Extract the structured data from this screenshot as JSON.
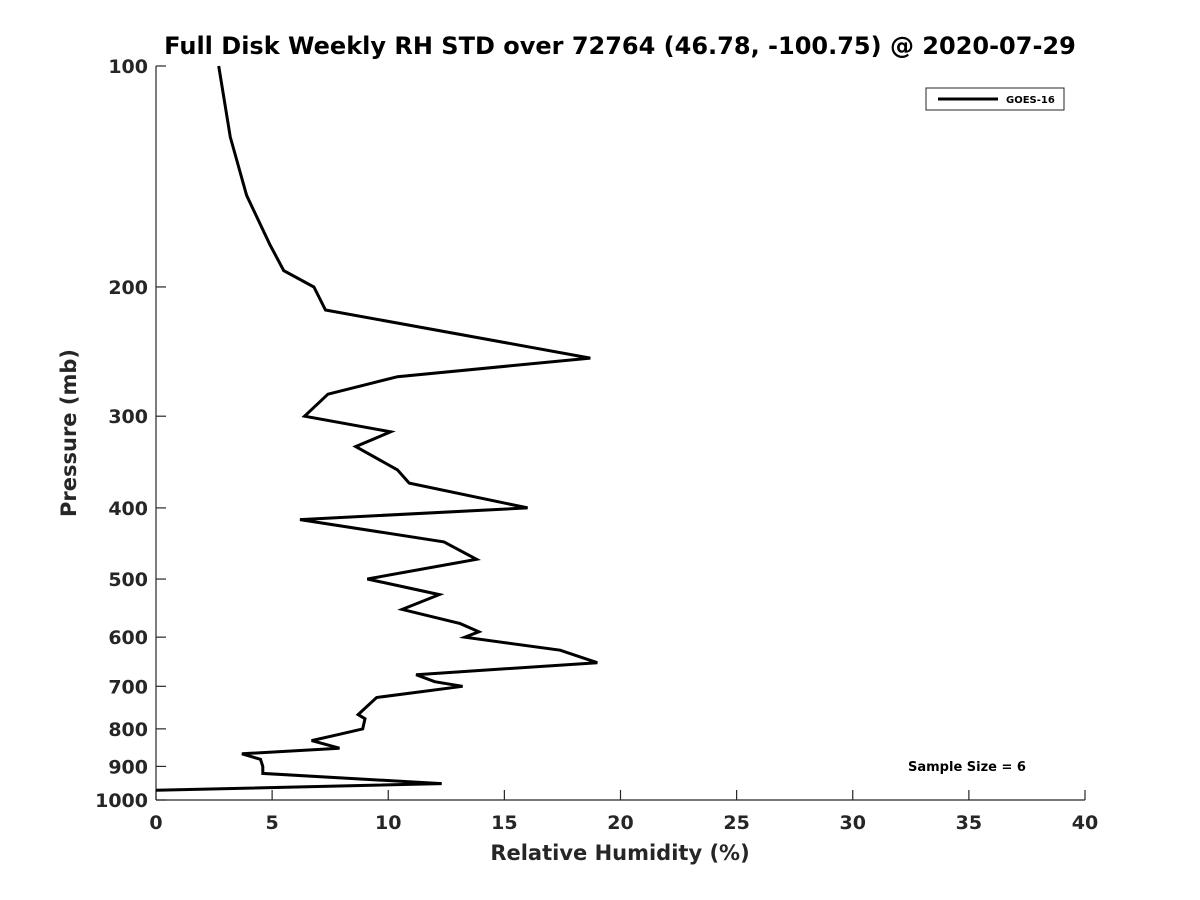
{
  "chart_data": {
    "type": "line",
    "title": "Full Disk Weekly RH STD over 72764 (46.78, -100.75) @ 2020-07-29",
    "xlabel": "Relative Humidity (%)",
    "ylabel": "Pressure (mb)",
    "xlim": [
      0,
      40
    ],
    "ylim": [
      100,
      1000
    ],
    "y_scale": "log",
    "y_reversed": true,
    "x_ticks": [
      0,
      5,
      10,
      15,
      20,
      25,
      30,
      35,
      40
    ],
    "y_ticks": [
      100,
      200,
      300,
      400,
      500,
      600,
      700,
      800,
      900,
      1000
    ],
    "grid": false,
    "legend_position": "top-right",
    "annotation": "Sample Size = 6",
    "series": [
      {
        "name": "GOES-16",
        "color": "#000000",
        "x": [
          2.7,
          3.2,
          3.9,
          4.9,
          5.5,
          6.8,
          7.3,
          18.7,
          10.4,
          7.4,
          6.4,
          10.1,
          8.6,
          10.4,
          10.9,
          16.0,
          6.2,
          12.4,
          13.8,
          12.2,
          9.1,
          12.2,
          10.6,
          13.1,
          13.9,
          13.3,
          17.4,
          19.0,
          11.2,
          12.0,
          13.2,
          9.5,
          8.7,
          9.0,
          8.9,
          7.8,
          6.7,
          7.9,
          3.7,
          4.5,
          4.6,
          4.6,
          12.3,
          0.0
        ],
        "y": [
          100,
          125,
          150,
          175,
          190,
          200,
          215,
          250,
          265,
          280,
          300,
          315,
          330,
          355,
          370,
          400,
          415,
          445,
          470,
          480,
          500,
          525,
          550,
          575,
          590,
          600,
          625,
          650,
          675,
          690,
          700,
          725,
          765,
          775,
          800,
          815,
          830,
          850,
          865,
          880,
          900,
          920,
          950,
          970
        ]
      }
    ]
  }
}
